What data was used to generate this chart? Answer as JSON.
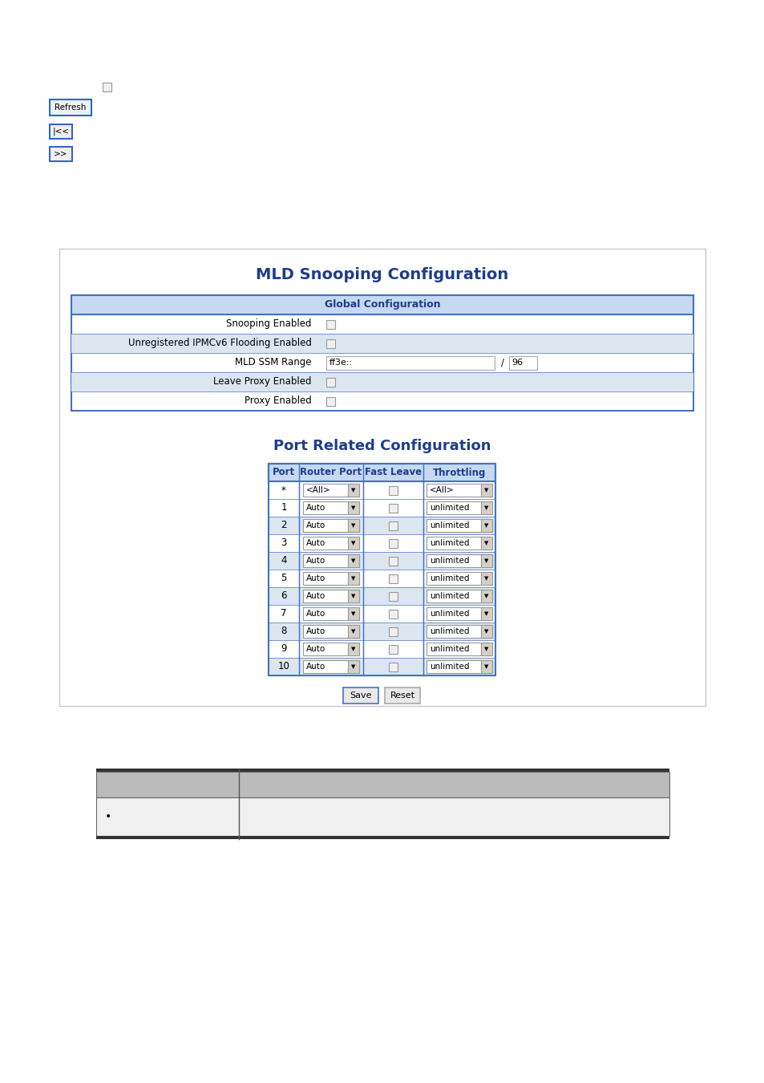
{
  "bg_color": "#ffffff",
  "title_mld": "MLD Snooping Configuration",
  "title_port": "Port Related Configuration",
  "title_color": "#1f3d8c",
  "global_header": "Global Configuration",
  "global_header_bg": "#c5d9f1",
  "global_rows": [
    {
      "label": "Snooping Enabled",
      "type": "checkbox",
      "alt_bg": false
    },
    {
      "label": "Unregistered IPMCv6 Flooding Enabled",
      "type": "checkbox",
      "alt_bg": true
    },
    {
      "label": "MLD SSM Range",
      "type": "text_input",
      "value": "ff3e::",
      "suffix": "/ 96",
      "alt_bg": false
    },
    {
      "label": "Leave Proxy Enabled",
      "type": "checkbox",
      "alt_bg": true
    },
    {
      "label": "Proxy Enabled",
      "type": "checkbox",
      "alt_bg": false
    }
  ],
  "port_headers": [
    "Port",
    "Router Port",
    "Fast Leave",
    "Throttling"
  ],
  "port_header_bg": "#c5d9f1",
  "port_rows": [
    {
      "port": "*",
      "router_port": "<All>",
      "throttling": "<All>",
      "alt_bg": false
    },
    {
      "port": "1",
      "router_port": "Auto",
      "throttling": "unlimited",
      "alt_bg": false
    },
    {
      "port": "2",
      "router_port": "Auto",
      "throttling": "unlimited",
      "alt_bg": true
    },
    {
      "port": "3",
      "router_port": "Auto",
      "throttling": "unlimited",
      "alt_bg": false
    },
    {
      "port": "4",
      "router_port": "Auto",
      "throttling": "unlimited",
      "alt_bg": true
    },
    {
      "port": "5",
      "router_port": "Auto",
      "throttling": "unlimited",
      "alt_bg": false
    },
    {
      "port": "6",
      "router_port": "Auto",
      "throttling": "unlimited",
      "alt_bg": true
    },
    {
      "port": "7",
      "router_port": "Auto",
      "throttling": "unlimited",
      "alt_bg": false
    },
    {
      "port": "8",
      "router_port": "Auto",
      "throttling": "unlimited",
      "alt_bg": true
    },
    {
      "port": "9",
      "router_port": "Auto",
      "throttling": "unlimited",
      "alt_bg": false
    },
    {
      "port": "10",
      "router_port": "Auto",
      "throttling": "unlimited",
      "alt_bg": true
    }
  ],
  "row_alt_bg": "#dce6f1",
  "row_normal_bg": "#ffffff",
  "border_color": "#4472c4",
  "checkbox_bg": "#f0f0f0",
  "checkbox_border": "#999999",
  "dd_bg": "#ffffff",
  "dd_arrow_bg": "#d4d0c8",
  "btn_save_border": "#4472c4",
  "btn_reset_border": "#aaaaaa",
  "bottom_tbl_hdr_bg": "#bbbbbb",
  "bottom_tbl_row_bg": "#f0f0f0",
  "bottom_tbl_border": "#333333"
}
